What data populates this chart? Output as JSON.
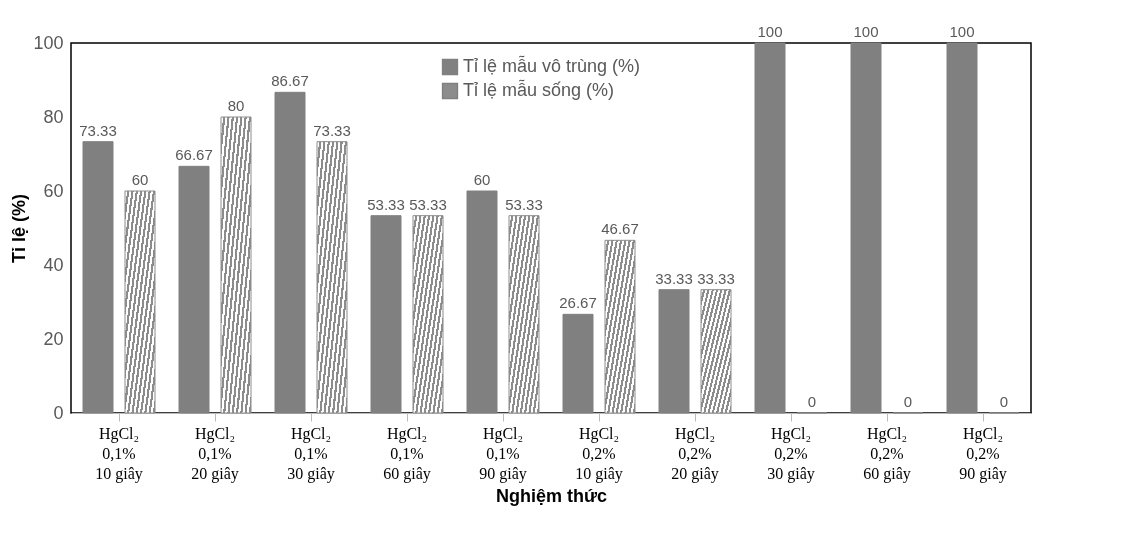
{
  "chart_data": {
    "type": "bar",
    "xlabel": "Nghiệm thức",
    "ylabel": "Tỉ lệ (%)",
    "categories": [
      "HgCl₂\n0,1%\n10 giây",
      "HgCl₂\n0,1%\n20 giây",
      "HgCl₂\n0,1%\n30 giây",
      "HgCl₂\n0,1%\n60 giây",
      "HgCl₂\n0,1%\n90 giây",
      "HgCl₂\n0,2%\n10 giây",
      "HgCl₂\n0,2%\n20 giây",
      "HgCl₂\n0,2%\n30 giây",
      "HgCl₂\n0,2%\n60 giây",
      "HgCl₂\n0,2%\n90 giây"
    ],
    "series": [
      {
        "name": "Tỉ lệ mẫu vô trùng (%)",
        "color": "#808080",
        "values": [
          73.33,
          66.67,
          86.67,
          53.33,
          60,
          26.67,
          33.33,
          100,
          100,
          100
        ]
      },
      {
        "name": "Tỉ lệ mẫu sống (%)",
        "color": "#8c8c8c",
        "values": [
          60,
          80,
          73.33,
          53.33,
          53.33,
          46.67,
          33.33,
          0,
          0,
          0
        ]
      }
    ],
    "ylim": [
      0,
      100
    ],
    "yticks": [
      0,
      20,
      40,
      60,
      80,
      100
    ],
    "legend": "top",
    "data_labels": true
  }
}
